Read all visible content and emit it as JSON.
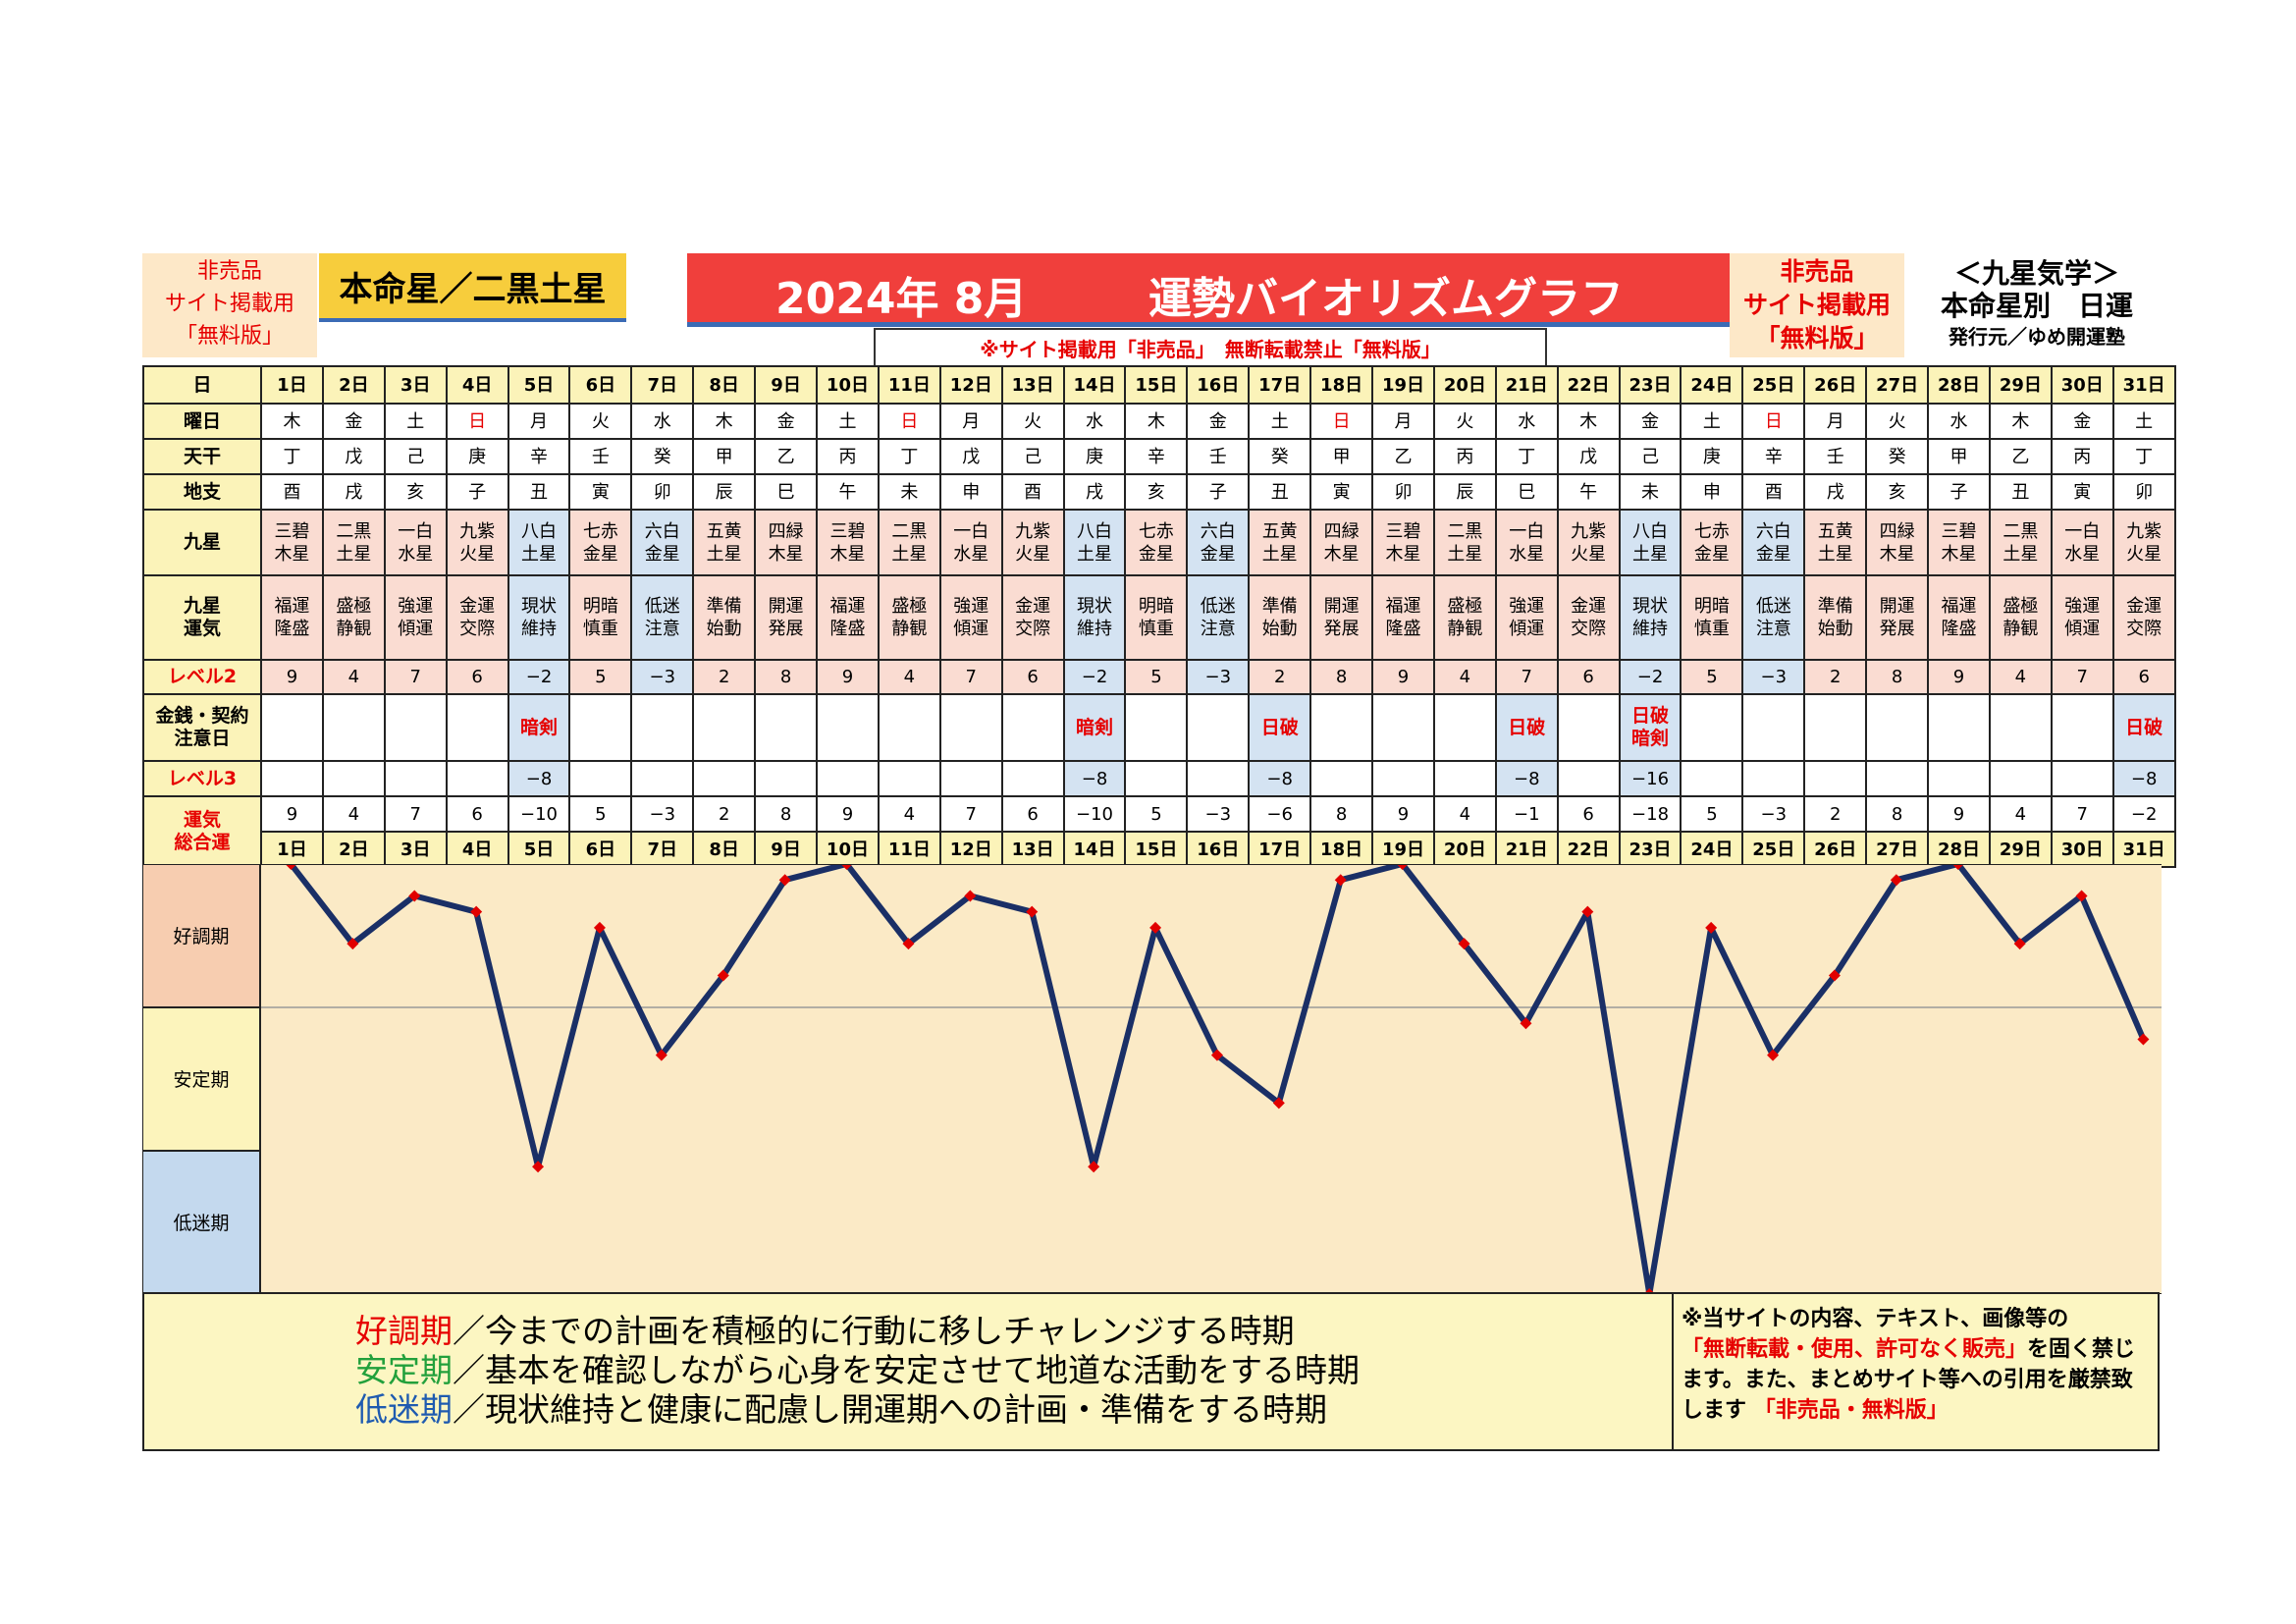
{
  "header": {
    "left_notice": [
      "非売品",
      "サイト掲載用",
      "「無料版」"
    ],
    "honmei": "本命星／二黒土星",
    "title_year": "2024年 8月",
    "title": "運勢バイオリズムグラフ",
    "right_notice": [
      "非売品",
      "サイト掲載用",
      "「無料版」"
    ],
    "kyusei_line1": "＜九星気学＞",
    "kyusei_line2": "本命星別　日運",
    "publisher": "発行元／ゆめ開運塾",
    "site_notice": "※サイト掲載用「非売品」　無断転載禁止「無料版」"
  },
  "row_labels": {
    "day": "日",
    "weekday": "曜日",
    "tenkan": "天干",
    "chishi": "地支",
    "kyusei": "九星",
    "kyusei_unki": "九星\n運気",
    "level2": "レベル2",
    "kinsen": "金銭・契約\n注意日",
    "level3": "レベル3",
    "total": "運気\n総合運"
  },
  "days": [
    "1日",
    "2日",
    "3日",
    "4日",
    "5日",
    "6日",
    "7日",
    "8日",
    "9日",
    "10日",
    "11日",
    "12日",
    "13日",
    "14日",
    "15日",
    "16日",
    "17日",
    "18日",
    "19日",
    "20日",
    "21日",
    "22日",
    "23日",
    "24日",
    "25日",
    "26日",
    "27日",
    "28日",
    "29日",
    "30日",
    "31日"
  ],
  "weekdays": [
    "木",
    "金",
    "土",
    "日",
    "月",
    "火",
    "水",
    "木",
    "金",
    "土",
    "日",
    "月",
    "火",
    "水",
    "木",
    "金",
    "土",
    "日",
    "月",
    "火",
    "水",
    "木",
    "金",
    "土",
    "日",
    "月",
    "火",
    "水",
    "木",
    "金",
    "土"
  ],
  "tenkan": [
    "丁",
    "戊",
    "己",
    "庚",
    "辛",
    "壬",
    "癸",
    "甲",
    "乙",
    "丙",
    "丁",
    "戊",
    "己",
    "庚",
    "辛",
    "壬",
    "癸",
    "甲",
    "乙",
    "丙",
    "丁",
    "戊",
    "己",
    "庚",
    "辛",
    "壬",
    "癸",
    "甲",
    "乙",
    "丙",
    "丁"
  ],
  "chishi": [
    "酉",
    "戌",
    "亥",
    "子",
    "丑",
    "寅",
    "卯",
    "辰",
    "巳",
    "午",
    "未",
    "申",
    "酉",
    "戌",
    "亥",
    "子",
    "丑",
    "寅",
    "卯",
    "辰",
    "巳",
    "午",
    "未",
    "申",
    "酉",
    "戌",
    "亥",
    "子",
    "丑",
    "寅",
    "卯"
  ],
  "kyusei": [
    "三碧\n木星",
    "二黒\n土星",
    "一白\n水星",
    "九紫\n火星",
    "八白\n土星",
    "七赤\n金星",
    "六白\n金星",
    "五黄\n土星",
    "四緑\n木星",
    "三碧\n木星",
    "二黒\n土星",
    "一白\n水星",
    "九紫\n火星",
    "八白\n土星",
    "七赤\n金星",
    "六白\n金星",
    "五黄\n土星",
    "四緑\n木星",
    "三碧\n木星",
    "二黒\n土星",
    "一白\n水星",
    "九紫\n火星",
    "八白\n土星",
    "七赤\n金星",
    "六白\n金星",
    "五黄\n土星",
    "四緑\n木星",
    "三碧\n木星",
    "二黒\n土星",
    "一白\n水星",
    "九紫\n火星"
  ],
  "unki": [
    "福運\n隆盛",
    "盛極\n静観",
    "強運\n傾運",
    "金運\n交際",
    "現状\n維持",
    "明暗\n慎重",
    "低迷\n注意",
    "準備\n始動",
    "開運\n発展",
    "福運\n隆盛",
    "盛極\n静観",
    "強運\n傾運",
    "金運\n交際",
    "現状\n維持",
    "明暗\n慎重",
    "低迷\n注意",
    "準備\n始動",
    "開運\n発展",
    "福運\n隆盛",
    "盛極\n静観",
    "強運\n傾運",
    "金運\n交際",
    "現状\n維持",
    "明暗\n慎重",
    "低迷\n注意",
    "準備\n始動",
    "開運\n発展",
    "福運\n隆盛",
    "盛極\n静観",
    "強運\n傾運",
    "金運\n交際"
  ],
  "level2": [
    "9",
    "4",
    "7",
    "6",
    "−2",
    "5",
    "−3",
    "2",
    "8",
    "9",
    "4",
    "7",
    "6",
    "−2",
    "5",
    "−3",
    "2",
    "8",
    "9",
    "4",
    "7",
    "6",
    "−2",
    "5",
    "−3",
    "2",
    "8",
    "9",
    "4",
    "7",
    "6"
  ],
  "kinsen": [
    "",
    "",
    "",
    "",
    "暗剣",
    "",
    "",
    "",
    "",
    "",
    "",
    "",
    "",
    "暗剣",
    "",
    "",
    "日破",
    "",
    "",
    "",
    "日破",
    "",
    "日破\n暗剣",
    "",
    "",
    "",
    "",
    "",
    "",
    "",
    "日破"
  ],
  "level3": [
    "",
    "",
    "",
    "",
    "−8",
    "",
    "",
    "",
    "",
    "",
    "",
    "",
    "",
    "−8",
    "",
    "",
    "−8",
    "",
    "",
    "",
    "−8",
    "",
    "−16",
    "",
    "",
    "",
    "",
    "",
    "",
    "",
    "−8"
  ],
  "total": [
    "9",
    "4",
    "7",
    "6",
    "−10",
    "5",
    "−3",
    "2",
    "8",
    "9",
    "4",
    "7",
    "6",
    "−10",
    "5",
    "−3",
    "−6",
    "8",
    "9",
    "4",
    "−1",
    "6",
    "−18",
    "5",
    "−3",
    "2",
    "8",
    "9",
    "4",
    "7",
    "−2"
  ],
  "chart_data": {
    "type": "line",
    "categories": [
      "1日",
      "2日",
      "3日",
      "4日",
      "5日",
      "6日",
      "7日",
      "8日",
      "9日",
      "10日",
      "11日",
      "12日",
      "13日",
      "14日",
      "15日",
      "16日",
      "17日",
      "18日",
      "19日",
      "20日",
      "21日",
      "22日",
      "23日",
      "24日",
      "25日",
      "26日",
      "27日",
      "28日",
      "29日",
      "30日",
      "31日"
    ],
    "series": [
      {
        "values": [
          9,
          4,
          7,
          6,
          -10,
          5,
          -3,
          2,
          8,
          9,
          4,
          7,
          6,
          -10,
          5,
          -3,
          -6,
          8,
          9,
          4,
          -1,
          6,
          -18,
          5,
          -3,
          2,
          8,
          9,
          4,
          7,
          -2
        ]
      }
    ],
    "ylim": [
      -18,
      9
    ],
    "zones": [
      {
        "label": "好調期",
        "color": "#f7cdb0"
      },
      {
        "label": "安定期",
        "color": "#fcf4bc"
      },
      {
        "label": "低迷期",
        "color": "#c4d9ee"
      }
    ],
    "line_color": "#1a2f66",
    "marker_color": "#e10000",
    "plot_bg": "#fbeac6"
  },
  "legend": {
    "l1_head": "好調期",
    "l1_text": "／今までの計画を積極的に行動に移しチャレンジする時期",
    "l1_color": "#e60000",
    "l2_head": "安定期",
    "l2_text": "／基本を確認しながら心身を安定させて地道な活動をする時期",
    "l2_color": "#22a03c",
    "l3_head": "低迷期",
    "l3_text": "／現状維持と健康に配慮し開運期への計画・準備をする時期",
    "l3_color": "#1f5bb0"
  },
  "copyright": {
    "a": "※当サイトの内容、テキスト、画像等の",
    "b": "「無断転載・使用、許可なく販売」",
    "c": "を固く禁じます。また、まとめサイト等への引用を厳禁致します",
    "d": "「非売品・無料版」"
  }
}
